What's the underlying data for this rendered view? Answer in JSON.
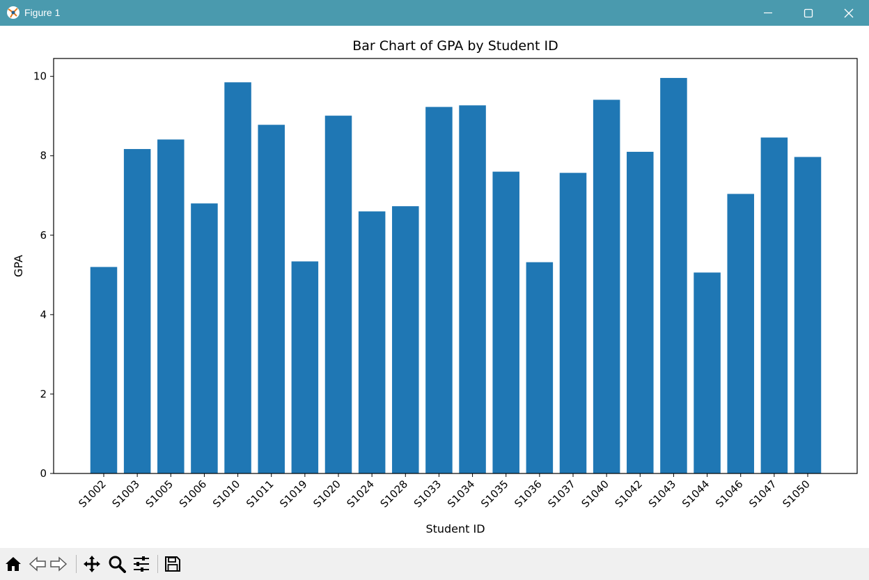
{
  "window": {
    "title": "Figure 1",
    "controls": [
      "minimize-icon",
      "maximize-icon",
      "close-icon"
    ]
  },
  "toolbar": {
    "tools": [
      "home-icon",
      "back-arrow-icon",
      "forward-arrow-icon",
      "pan-icon",
      "zoom-icon",
      "configure-subplots-icon",
      "save-icon"
    ]
  },
  "colors": {
    "titlebar": "#4a9aae",
    "bar": "#1f77b4",
    "toolbar": "#f0f0f0"
  },
  "chart_data": {
    "type": "bar",
    "title": "Bar Chart of GPA by Student ID",
    "xlabel": "Student ID",
    "ylabel": "GPA",
    "ylim": [
      0,
      10.45
    ],
    "yticks": [
      0,
      2,
      4,
      6,
      8,
      10
    ],
    "grid": false,
    "legend": "none",
    "categories": [
      "S1002",
      "S1003",
      "S1005",
      "S1006",
      "S1010",
      "S1011",
      "S1019",
      "S1020",
      "S1024",
      "S1028",
      "S1033",
      "S1034",
      "S1035",
      "S1036",
      "S1037",
      "S1040",
      "S1042",
      "S1043",
      "S1044",
      "S1046",
      "S1047",
      "S1050"
    ],
    "values": [
      5.2,
      8.17,
      8.41,
      6.8,
      9.85,
      8.78,
      5.34,
      9.01,
      6.6,
      6.73,
      9.23,
      9.27,
      7.6,
      5.32,
      7.57,
      9.41,
      8.1,
      9.96,
      5.06,
      7.04,
      8.46,
      7.97
    ]
  }
}
